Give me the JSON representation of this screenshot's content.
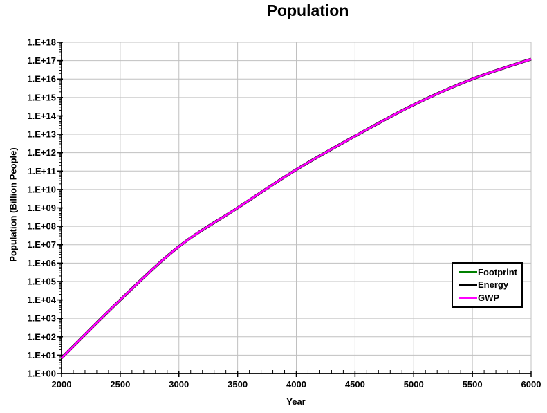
{
  "chart_data": {
    "type": "line",
    "title": "Population",
    "xlabel": "Year",
    "ylabel": "Population (Billion People)",
    "legend_position": "inside-right",
    "grid": "major-gridlines-on",
    "x_axis": {
      "min": 2000,
      "max": 6000,
      "major_step": 500,
      "minor_step": 100,
      "tick_labels": [
        "2000",
        "2500",
        "3000",
        "3500",
        "4000",
        "4500",
        "5000",
        "5500",
        "6000"
      ]
    },
    "y_axis": {
      "scale": "log",
      "min_exponent": 0,
      "max_exponent": 18,
      "tick_labels": [
        "1.E+00",
        "1.E+01",
        "1.E+02",
        "1.E+03",
        "1.E+04",
        "1.E+05",
        "1.E+06",
        "1.E+07",
        "1.E+08",
        "1.E+09",
        "1.E+10",
        "1.E+11",
        "1.E+12",
        "1.E+13",
        "1.E+14",
        "1.E+15",
        "1.E+16",
        "1.E+17",
        "1.E+18"
      ]
    },
    "x": [
      2000,
      2500,
      3000,
      3500,
      4000,
      4500,
      5000,
      5500,
      6000
    ],
    "series": [
      {
        "name": "Footprint",
        "color": "#008000",
        "values": [
          7,
          10000.0,
          8000000.0,
          1000000000.0,
          120000000000.0,
          8000000000000.0,
          400000000000000.0,
          1e+16,
          1.2e+17
        ]
      },
      {
        "name": "Energy",
        "color": "#000000",
        "values": [
          7,
          10000.0,
          8000000.0,
          1000000000.0,
          120000000000.0,
          8000000000000.0,
          400000000000000.0,
          1e+16,
          1.2e+17
        ]
      },
      {
        "name": "GWP",
        "color": "#FF00FF",
        "values": [
          7,
          10000.0,
          8000000.0,
          1000000000.0,
          120000000000.0,
          8000000000000.0,
          400000000000000.0,
          1e+16,
          1.2e+17
        ]
      }
    ]
  },
  "colors": {
    "gridline": "#C0C0C0",
    "axis": "#000000",
    "background": "#FFFFFF",
    "legend_border": "#000000"
  }
}
